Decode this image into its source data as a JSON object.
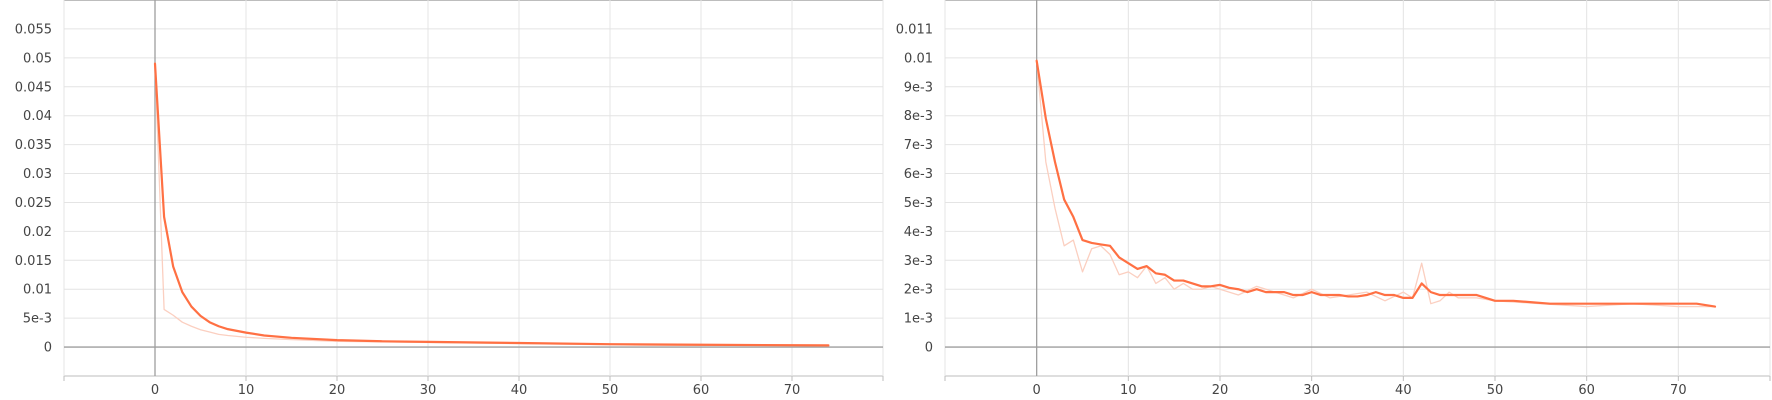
{
  "chart_data": [
    {
      "type": "line",
      "xlim": [
        -10,
        80
      ],
      "ylim": [
        -0.005,
        0.06
      ],
      "grid": true,
      "x_ticks": [
        "0",
        "10",
        "20",
        "30",
        "40",
        "50",
        "60",
        "70"
      ],
      "y_ticks": [
        "0",
        "5e-3",
        "0.01",
        "0.015",
        "0.02",
        "0.025",
        "0.03",
        "0.035",
        "0.04",
        "0.045",
        "0.05",
        "0.055"
      ],
      "series": [
        {
          "style": "raw",
          "color": "#fbcfc0",
          "x": [
            0,
            1,
            2,
            3,
            4,
            5,
            6,
            7,
            8,
            10,
            12,
            15,
            20,
            30,
            40,
            50,
            60,
            74
          ],
          "y": [
            0.049,
            0.0065,
            0.0055,
            0.0043,
            0.0036,
            0.003,
            0.0026,
            0.0022,
            0.002,
            0.0017,
            0.0015,
            0.0013,
            0.001,
            0.0008,
            0.0006,
            0.0004,
            0.0003,
            0.0002
          ]
        },
        {
          "style": "smoothed",
          "color": "#ff7043",
          "x": [
            0,
            1,
            2,
            3,
            4,
            5,
            6,
            7,
            8,
            10,
            12,
            15,
            20,
            25,
            30,
            40,
            50,
            60,
            74
          ],
          "y": [
            0.049,
            0.0225,
            0.0139,
            0.0095,
            0.007,
            0.0054,
            0.0043,
            0.0036,
            0.0031,
            0.0025,
            0.002,
            0.0016,
            0.0012,
            0.001,
            0.0009,
            0.0007,
            0.0005,
            0.0004,
            0.0003
          ]
        }
      ]
    },
    {
      "type": "line",
      "xlim": [
        -10,
        80
      ],
      "ylim": [
        -0.001,
        0.012
      ],
      "grid": true,
      "x_ticks": [
        "0",
        "10",
        "20",
        "30",
        "40",
        "50",
        "60",
        "70"
      ],
      "y_ticks": [
        "0",
        "1e-3",
        "2e-3",
        "3e-3",
        "4e-3",
        "5e-3",
        "6e-3",
        "7e-3",
        "8e-3",
        "9e-3",
        "0.01",
        "0.011"
      ],
      "series": [
        {
          "style": "raw",
          "color": "#fbcfc0",
          "x": [
            0,
            1,
            2,
            3,
            4,
            5,
            6,
            7,
            8,
            9,
            10,
            11,
            12,
            13,
            14,
            15,
            16,
            17,
            18,
            19,
            20,
            22,
            24,
            26,
            28,
            30,
            32,
            34,
            36,
            38,
            40,
            41,
            42,
            43,
            44,
            45,
            46,
            48,
            50,
            55,
            60,
            65,
            70,
            74
          ],
          "y": [
            0.0099,
            0.0064,
            0.0048,
            0.0035,
            0.0037,
            0.0026,
            0.0034,
            0.0035,
            0.0032,
            0.0025,
            0.0026,
            0.0024,
            0.0028,
            0.0022,
            0.0024,
            0.002,
            0.0022,
            0.002,
            0.002,
            0.0021,
            0.002,
            0.0018,
            0.0021,
            0.0019,
            0.0017,
            0.002,
            0.0017,
            0.0018,
            0.0019,
            0.0016,
            0.0019,
            0.0017,
            0.0029,
            0.0015,
            0.0016,
            0.0019,
            0.0017,
            0.0017,
            0.0016,
            0.0015,
            0.0014,
            0.0015,
            0.0014,
            0.0014
          ]
        },
        {
          "style": "smoothed",
          "color": "#ff7043",
          "x": [
            0,
            1,
            2,
            3,
            4,
            5,
            6,
            7,
            8,
            9,
            10,
            11,
            12,
            13,
            14,
            15,
            16,
            17,
            18,
            19,
            20,
            21,
            22,
            23,
            24,
            25,
            26,
            27,
            28,
            29,
            30,
            31,
            32,
            33,
            34,
            35,
            36,
            37,
            38,
            39,
            40,
            41,
            42,
            43,
            44,
            45,
            46,
            47,
            48,
            49,
            50,
            52,
            54,
            56,
            58,
            60,
            62,
            64,
            66,
            68,
            70,
            72,
            74
          ],
          "y": [
            0.0099,
            0.0079,
            0.0064,
            0.0051,
            0.0045,
            0.0037,
            0.0036,
            0.00355,
            0.0035,
            0.0031,
            0.0029,
            0.0027,
            0.0028,
            0.00255,
            0.0025,
            0.0023,
            0.0023,
            0.0022,
            0.0021,
            0.0021,
            0.00215,
            0.00205,
            0.002,
            0.0019,
            0.002,
            0.0019,
            0.0019,
            0.0019,
            0.0018,
            0.0018,
            0.0019,
            0.0018,
            0.0018,
            0.0018,
            0.00175,
            0.00175,
            0.0018,
            0.0019,
            0.0018,
            0.0018,
            0.0017,
            0.0017,
            0.0022,
            0.0019,
            0.0018,
            0.0018,
            0.0018,
            0.0018,
            0.0018,
            0.0017,
            0.0016,
            0.0016,
            0.00155,
            0.0015,
            0.0015,
            0.0015,
            0.0015,
            0.0015,
            0.0015,
            0.0015,
            0.0015,
            0.0015,
            0.0014
          ]
        }
      ]
    }
  ]
}
